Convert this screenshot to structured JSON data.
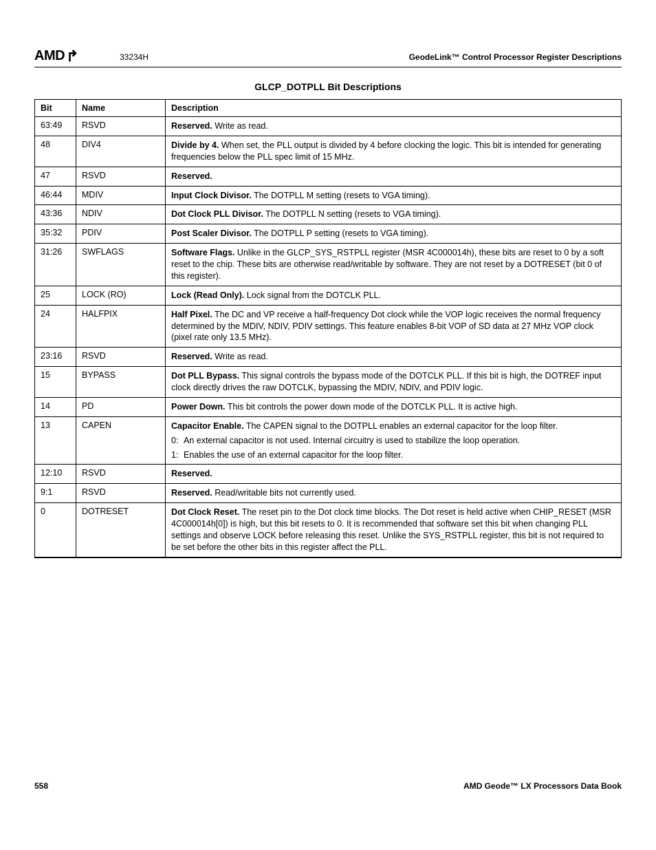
{
  "header": {
    "logo_text": "AMD",
    "doc_code": "33234H",
    "section_title": "GeodeLink™ Control Processor Register Descriptions"
  },
  "table": {
    "title": "GLCP_DOTPLL Bit Descriptions",
    "columns": [
      "Bit",
      "Name",
      "Description"
    ],
    "rows": [
      {
        "bit": "63:49",
        "name": "RSVD",
        "desc": [
          {
            "bold": "Reserved.",
            "text": " Write as read."
          }
        ]
      },
      {
        "bit": "48",
        "name": "DIV4",
        "desc": [
          {
            "bold": "Divide by 4.",
            "text": " When set, the PLL output is divided by 4 before clocking the logic. This bit is intended for generating frequencies below the PLL spec limit of 15 MHz."
          }
        ]
      },
      {
        "bit": "47",
        "name": "RSVD",
        "desc": [
          {
            "bold": "Reserved.",
            "text": ""
          }
        ]
      },
      {
        "bit": "46:44",
        "name": "MDIV",
        "desc": [
          {
            "bold": "Input Clock Divisor.",
            "text": " The DOTPLL M setting (resets to VGA timing)."
          }
        ]
      },
      {
        "bit": "43:36",
        "name": "NDIV",
        "desc": [
          {
            "bold": "Dot Clock PLL Divisor.",
            "text": " The DOTPLL N setting (resets to VGA timing)."
          }
        ]
      },
      {
        "bit": "35:32",
        "name": "PDIV",
        "desc": [
          {
            "bold": "Post Scaler Divisor.",
            "text": " The DOTPLL P setting (resets to VGA timing)."
          }
        ]
      },
      {
        "bit": "31:26",
        "name": "SWFLAGS",
        "desc": [
          {
            "bold": "Software Flags.",
            "text": " Unlike in the GLCP_SYS_RSTPLL register (MSR 4C000014h), these bits are reset to 0 by a soft reset to the chip. These bits are otherwise read/writable by software. They are not reset by a DOTRESET (bit 0 of this register)."
          }
        ]
      },
      {
        "bit": "25",
        "name": "LOCK (RO)",
        "desc": [
          {
            "bold": "Lock (Read Only).",
            "text": " Lock signal from the DOTCLK PLL."
          }
        ]
      },
      {
        "bit": "24",
        "name": "HALFPIX",
        "desc": [
          {
            "bold": "Half Pixel.",
            "text": " The DC and VP receive a half-frequency Dot clock while the VOP logic receives the normal frequency determined by the MDIV, NDIV, PDIV settings. This feature enables 8-bit VOP of SD data at 27 MHz VOP clock (pixel rate only 13.5 MHz)."
          }
        ]
      },
      {
        "bit": "23:16",
        "name": "RSVD",
        "desc": [
          {
            "bold": "Reserved.",
            "text": " Write as read."
          }
        ]
      },
      {
        "bit": "15",
        "name": "BYPASS",
        "desc": [
          {
            "bold": "Dot PLL Bypass.",
            "text": " This signal controls the bypass mode of the DOTCLK PLL. If this bit is high, the DOTREF input clock directly drives the raw DOTCLK, bypassing the MDIV, NDIV, and PDIV logic."
          }
        ]
      },
      {
        "bit": "14",
        "name": "PD",
        "desc": [
          {
            "bold": "Power Down.",
            "text": " This bit controls the power down mode of the DOTCLK PLL. It is active high."
          }
        ]
      },
      {
        "bit": "13",
        "name": "CAPEN",
        "desc": [
          {
            "bold": "Capacitor Enable.",
            "text": " The CAPEN signal to the DOTPLL enables an external capacitor for the loop filter."
          }
        ],
        "options": [
          {
            "key": "0:",
            "val": "An external capacitor is not used. Internal circuitry is used to stabilize the loop operation."
          },
          {
            "key": "1:",
            "val": "Enables the use of an external capacitor for the loop filter."
          }
        ]
      },
      {
        "bit": "12:10",
        "name": "RSVD",
        "desc": [
          {
            "bold": "Reserved.",
            "text": ""
          }
        ]
      },
      {
        "bit": "9:1",
        "name": "RSVD",
        "desc": [
          {
            "bold": "Reserved.",
            "text": " Read/writable bits not currently used."
          }
        ]
      },
      {
        "bit": "0",
        "name": "DOTRESET",
        "desc": [
          {
            "bold": "Dot Clock Reset.",
            "text": " The reset pin to the Dot clock time blocks. The Dot reset is held active when CHIP_RESET (MSR 4C000014h[0]) is high, but this bit resets to 0. It is recommended that software set this bit when changing PLL settings and observe LOCK before releasing this reset. Unlike the SYS_RSTPLL register, this bit is not required to be set before the other bits in this register affect the PLL."
          }
        ]
      }
    ]
  },
  "footer": {
    "page_number": "558",
    "book_title": "AMD Geode™ LX Processors Data Book"
  }
}
